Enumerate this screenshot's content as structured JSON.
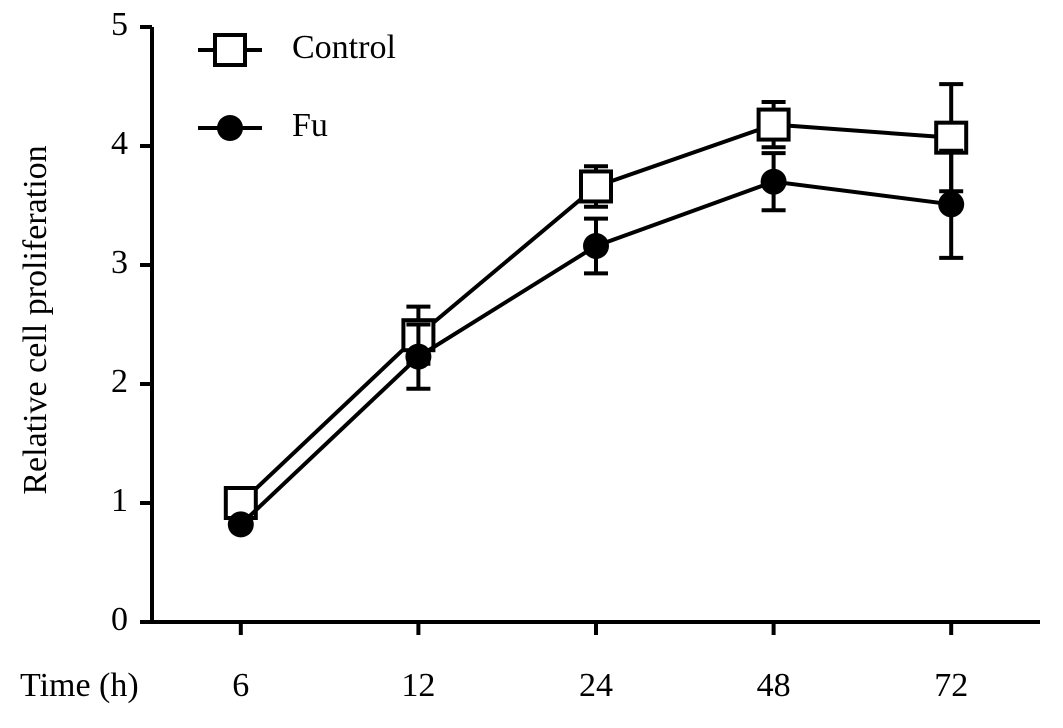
{
  "chart_data": {
    "type": "line",
    "xlabel": "Time (h)",
    "ylabel": "Relative cell proliferation",
    "categories": [
      "6",
      "12",
      "24",
      "48",
      "72"
    ],
    "series": [
      {
        "name": "Control",
        "color": "#000000",
        "marker": "open-square",
        "values": [
          1.0,
          2.41,
          3.66,
          4.18,
          4.07
        ],
        "errors": [
          0.02,
          0.24,
          0.17,
          0.19,
          0.45
        ]
      },
      {
        "name": "Fu",
        "color": "#000000",
        "marker": "filled-circle",
        "values": [
          0.82,
          2.23,
          3.16,
          3.7,
          3.51
        ],
        "errors": [
          0.02,
          0.27,
          0.23,
          0.24,
          0.45
        ]
      }
    ],
    "ylim": [
      0,
      5
    ],
    "yticks": [
      0,
      1,
      2,
      3,
      4,
      5
    ],
    "legend": "upper left"
  }
}
